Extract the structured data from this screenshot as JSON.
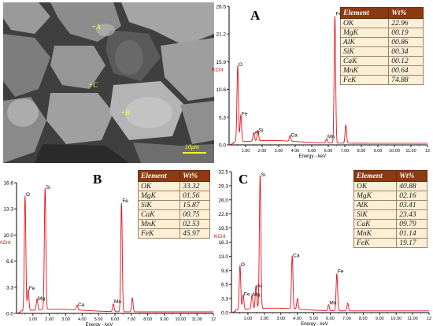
{
  "sem": {
    "labels": {
      "a": "+A",
      "b": "+B",
      "c": "+C"
    },
    "scale": "10μm"
  },
  "chart_data": [
    {
      "type": "line",
      "panel": "A",
      "xlabel": "Energy - keV",
      "ylabel": "KCnt",
      "xlim": [
        0,
        12
      ],
      "ylim": [
        0,
        26.5
      ],
      "yticks": [
        "0.0",
        "5.3",
        "10.6",
        "15.9",
        "21.2",
        "26.5"
      ],
      "xticks": [
        "1.00",
        "2.00",
        "3.00",
        "4.00",
        "5.00",
        "6.00",
        "7.00",
        "8.00",
        "9.00",
        "10.00",
        "11.00",
        "12"
      ],
      "peaks": [
        {
          "label": "O",
          "x": 0.52,
          "y": 14.6
        },
        {
          "label": "Fe",
          "x": 0.71,
          "y": 5.2
        },
        {
          "label": "Al",
          "x": 1.49,
          "y": 1.6
        },
        {
          "label": "Si",
          "x": 1.74,
          "y": 2.0
        },
        {
          "label": "Ca",
          "x": 3.69,
          "y": 1.1
        },
        {
          "label": "Mn",
          "x": 5.9,
          "y": 0.8
        },
        {
          "label": "Fe",
          "x": 6.4,
          "y": 24.3
        },
        {
          "label": "",
          "x": 7.06,
          "y": 3.5
        }
      ],
      "table": {
        "headers": [
          "Element",
          "Wt%"
        ],
        "rows": [
          [
            "OK",
            "22.96"
          ],
          [
            "MgK",
            "00.19"
          ],
          [
            "AlK",
            "00.86"
          ],
          [
            "SiK",
            "00.34"
          ],
          [
            "CaK",
            "00.12"
          ],
          [
            "MnK",
            "00.64"
          ],
          [
            "FeK",
            "74.88"
          ]
        ]
      }
    },
    {
      "type": "line",
      "panel": "B",
      "xlabel": "Energy - keV",
      "ylabel": "KCnt",
      "xlim": [
        0,
        12
      ],
      "ylim": [
        0,
        16.6
      ],
      "yticks": [
        "0.0",
        "3.3",
        "6.6",
        "10.0",
        "13.3",
        "16.6"
      ],
      "xticks": [
        "1.00",
        "2.00",
        "3.00",
        "4.00",
        "5.00",
        "6.00",
        "7.00",
        "8.00",
        "9.00",
        "10.00",
        "11.00",
        "12"
      ],
      "peaks": [
        {
          "label": "O",
          "x": 0.52,
          "y": 14.6
        },
        {
          "label": "Fe",
          "x": 0.71,
          "y": 2.7
        },
        {
          "label": "Mg",
          "x": 1.25,
          "y": 1.4
        },
        {
          "label": "Si",
          "x": 1.74,
          "y": 15.5
        },
        {
          "label": "Ca",
          "x": 3.69,
          "y": 0.6
        },
        {
          "label": "Mn",
          "x": 5.9,
          "y": 1.0
        },
        {
          "label": "Fe",
          "x": 6.4,
          "y": 13.8
        },
        {
          "label": "",
          "x": 7.06,
          "y": 1.8
        }
      ],
      "table": {
        "headers": [
          "Element",
          "Wt%"
        ],
        "rows": [
          [
            "OK",
            "33.32"
          ],
          [
            "MgK",
            "01.56"
          ],
          [
            "SiK",
            "15.87"
          ],
          [
            "CaK",
            "00.75"
          ],
          [
            "MnK",
            "02.53"
          ],
          [
            "FeK",
            "45.97"
          ]
        ]
      }
    },
    {
      "type": "line",
      "panel": "C",
      "xlabel": "Energy - keV",
      "ylabel": "KCnt",
      "xlim": [
        0,
        12
      ],
      "ylim": [
        0,
        32.5
      ],
      "yticks": [
        "0.0",
        "3.3",
        "6.5",
        "9.8",
        "13.0",
        "16.3",
        "19.5",
        "22.8",
        "26.0",
        "29.3",
        "32.5"
      ],
      "xticks": [
        "1.00",
        "2.00",
        "3.00",
        "4.00",
        "5.00",
        "6.00",
        "7.00",
        "8.00",
        "9.00",
        "10.00",
        "11.00",
        "12"
      ],
      "peaks": [
        {
          "label": "O",
          "x": 0.52,
          "y": 10.2
        },
        {
          "label": "Fe",
          "x": 0.71,
          "y": 3.4
        },
        {
          "label": "Mg",
          "x": 1.25,
          "y": 3.3
        },
        {
          "label": "Al",
          "x": 1.49,
          "y": 5.3
        },
        {
          "label": "Si",
          "x": 1.74,
          "y": 30.9
        },
        {
          "label": "Ca",
          "x": 3.69,
          "y": 12.3
        },
        {
          "label": "",
          "x": 4.01,
          "y": 2.5
        },
        {
          "label": "Mn",
          "x": 5.9,
          "y": 1.4
        },
        {
          "label": "Fe",
          "x": 6.4,
          "y": 8.6
        },
        {
          "label": "",
          "x": 7.06,
          "y": 1.8
        }
      ],
      "table": {
        "headers": [
          "Element",
          "Wt%"
        ],
        "rows": [
          [
            "OK",
            "40.88"
          ],
          [
            "MgK",
            "02.16"
          ],
          [
            "AlK",
            "03.41"
          ],
          [
            "SiK",
            "23.43"
          ],
          [
            "CaK",
            "09.79"
          ],
          [
            "MnK",
            "01.14"
          ],
          [
            "FeK",
            "19.17"
          ]
        ]
      }
    }
  ]
}
